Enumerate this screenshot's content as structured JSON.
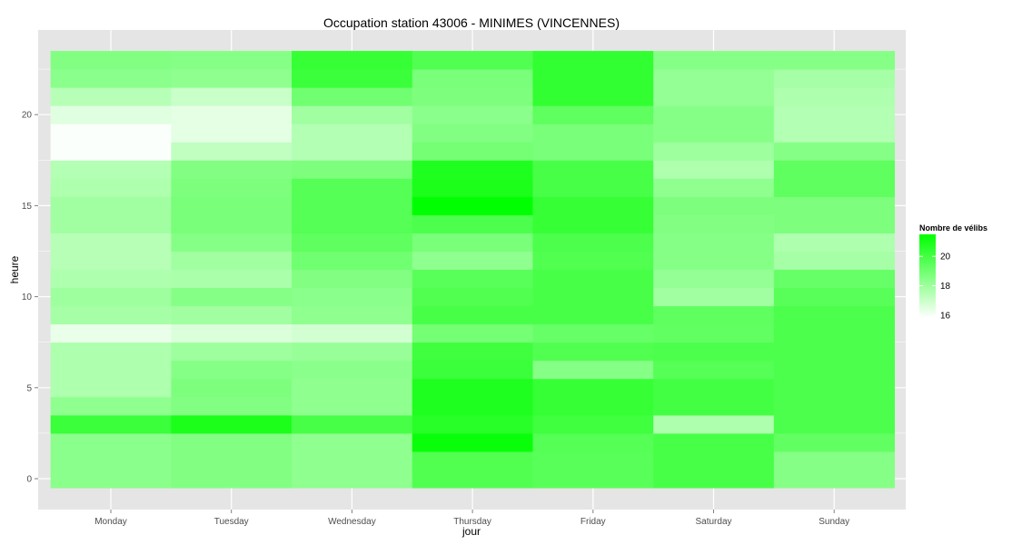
{
  "chart_data": {
    "type": "heatmap",
    "title": "Occupation station 43006 - MINIMES (VINCENNES)",
    "xlabel": "jour",
    "ylabel": "heure",
    "x_categories": [
      "Monday",
      "Tuesday",
      "Wednesday",
      "Thursday",
      "Friday",
      "Saturday",
      "Sunday"
    ],
    "y_values": [
      0,
      1,
      2,
      3,
      4,
      5,
      6,
      7,
      8,
      9,
      10,
      11,
      12,
      13,
      14,
      15,
      16,
      17,
      18,
      19,
      20,
      21,
      22,
      23
    ],
    "y_ticks": [
      0,
      5,
      10,
      15,
      20
    ],
    "ylim": [
      -0.5,
      23.5
    ],
    "grid": true,
    "legend": {
      "title": "Nombre de vélibs",
      "position": "right",
      "ticks": [
        16,
        18,
        20
      ],
      "range": [
        15.8,
        21.5
      ],
      "low_color": "#ffffff",
      "high_color": "#00ff00"
    },
    "values": {
      "Monday": [
        18.4,
        18.4,
        18.4,
        20.2,
        18.3,
        17.6,
        17.6,
        17.6,
        16.3,
        17.8,
        18.0,
        17.6,
        17.4,
        17.4,
        17.9,
        17.9,
        17.6,
        17.5,
        15.9,
        15.9,
        16.5,
        17.4,
        18.4,
        18.6
      ],
      "Tuesday": [
        18.6,
        18.6,
        18.6,
        20.9,
        18.6,
        18.7,
        18.5,
        18.0,
        16.6,
        17.9,
        18.5,
        17.7,
        17.9,
        18.5,
        18.8,
        18.8,
        18.7,
        18.6,
        17.2,
        16.4,
        16.4,
        17.0,
        18.3,
        18.5
      ],
      "Wednesday": [
        18.3,
        18.3,
        18.3,
        19.9,
        18.3,
        18.3,
        18.4,
        18.1,
        16.8,
        18.3,
        18.4,
        18.6,
        19.0,
        19.4,
        19.6,
        19.6,
        19.6,
        18.7,
        17.5,
        17.5,
        17.9,
        19.0,
        20.2,
        20.3
      ],
      "Thursday": [
        19.7,
        19.7,
        21.3,
        20.6,
        20.8,
        20.8,
        20.2,
        20.1,
        18.9,
        19.9,
        19.7,
        19.5,
        18.3,
        18.8,
        19.8,
        21.5,
        20.9,
        20.8,
        18.9,
        18.6,
        18.4,
        18.7,
        18.8,
        19.7
      ],
      "Friday": [
        19.5,
        19.5,
        19.6,
        20.1,
        20.3,
        20.3,
        18.5,
        19.7,
        19.2,
        19.9,
        19.9,
        19.9,
        19.7,
        19.8,
        20.3,
        20.3,
        19.9,
        19.9,
        18.8,
        18.8,
        19.4,
        20.4,
        20.4,
        20.4
      ],
      "Saturday": [
        19.9,
        19.9,
        19.9,
        17.6,
        20.0,
        20.0,
        19.6,
        19.8,
        19.3,
        19.4,
        17.9,
        18.2,
        18.5,
        18.5,
        18.6,
        18.7,
        18.3,
        17.6,
        18.0,
        18.5,
        18.5,
        18.2,
        18.2,
        18.5
      ],
      "Sunday": [
        18.5,
        18.5,
        19.3,
        19.8,
        19.8,
        19.8,
        19.8,
        19.8,
        19.8,
        19.8,
        19.5,
        19.2,
        17.8,
        17.6,
        18.7,
        18.7,
        19.4,
        19.4,
        18.5,
        17.5,
        17.5,
        17.6,
        17.8,
        18.5
      ]
    }
  }
}
